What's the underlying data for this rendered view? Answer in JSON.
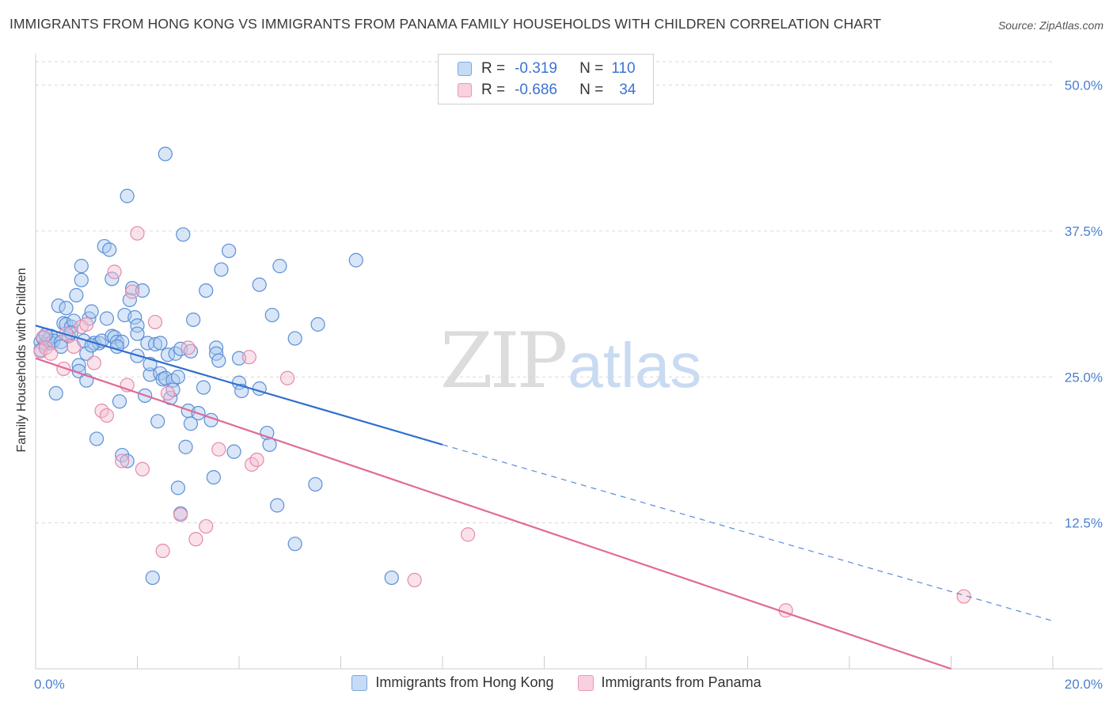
{
  "header": {
    "title": "IMMIGRANTS FROM HONG KONG VS IMMIGRANTS FROM PANAMA FAMILY HOUSEHOLDS WITH CHILDREN CORRELATION CHART",
    "source": "Source: ZipAtlas.com"
  },
  "watermark": {
    "zip": "ZIP",
    "atlas": "atlas"
  },
  "legend": {
    "rows": [
      {
        "r_label": "R =",
        "r_value": "-0.319",
        "n_label": "N =",
        "n_value": "110"
      },
      {
        "r_label": "R =",
        "r_value": "-0.686",
        "n_label": "N =",
        "n_value": "34"
      }
    ]
  },
  "colors": {
    "hong_kong_fill": "#a8c8f0",
    "hong_kong_stroke": "#5b8fd6",
    "hong_kong_line": "#2f6fd0",
    "panama_fill": "#f5bfd2",
    "panama_stroke": "#e48aab",
    "panama_line": "#e06a96",
    "grid": "#d9d9d9",
    "tick_text": "#4a7fd0"
  },
  "chart_data": {
    "type": "scatter",
    "title": "IMMIGRANTS FROM HONG KONG VS IMMIGRANTS FROM PANAMA FAMILY HOUSEHOLDS WITH CHILDREN CORRELATION CHART",
    "xlabel": "",
    "ylabel": "Family Households with Children",
    "xlim": [
      0,
      20
    ],
    "ylim": [
      0,
      52
    ],
    "x_tick_labels": [
      "0.0%",
      "20.0%"
    ],
    "y_ticks": [
      12.5,
      25.0,
      37.5,
      50.0
    ],
    "y_tick_labels": [
      "12.5%",
      "25.0%",
      "37.5%",
      "50.0%"
    ],
    "grid": "horizontal dashed",
    "legend_position": "top-center",
    "series": [
      {
        "name": "Immigrants from Hong Kong",
        "r": -0.319,
        "n": 110,
        "trend": {
          "x0": 0,
          "y0": 29.4,
          "x1": 8.0,
          "y1": 19.2,
          "dashed_to_x": 20.0,
          "dashed_to_y": 4.1
        },
        "points": [
          [
            0.1,
            28.0
          ],
          [
            0.1,
            27.3
          ],
          [
            0.15,
            28.3
          ],
          [
            0.2,
            27.8
          ],
          [
            0.25,
            28.2
          ],
          [
            0.3,
            28.5
          ],
          [
            0.3,
            27.9
          ],
          [
            0.35,
            28.1
          ],
          [
            0.4,
            23.6
          ],
          [
            0.45,
            31.1
          ],
          [
            0.5,
            28.0
          ],
          [
            0.55,
            29.6
          ],
          [
            0.6,
            30.9
          ],
          [
            0.6,
            29.5
          ],
          [
            0.65,
            28.5
          ],
          [
            0.7,
            29.3
          ],
          [
            0.75,
            29.8
          ],
          [
            0.8,
            32.0
          ],
          [
            0.85,
            26.0
          ],
          [
            0.85,
            25.5
          ],
          [
            0.9,
            33.3
          ],
          [
            0.9,
            34.5
          ],
          [
            0.95,
            28.1
          ],
          [
            1.0,
            27.0
          ],
          [
            1.0,
            24.7
          ],
          [
            1.05,
            30.0
          ],
          [
            1.1,
            30.6
          ],
          [
            1.15,
            27.9
          ],
          [
            1.2,
            19.7
          ],
          [
            1.25,
            27.9
          ],
          [
            1.3,
            28.1
          ],
          [
            1.35,
            36.2
          ],
          [
            1.4,
            30.0
          ],
          [
            1.45,
            35.9
          ],
          [
            1.5,
            33.4
          ],
          [
            1.5,
            28.5
          ],
          [
            1.55,
            28.4
          ],
          [
            1.6,
            28.0
          ],
          [
            1.65,
            22.9
          ],
          [
            1.7,
            28.0
          ],
          [
            1.7,
            18.3
          ],
          [
            1.75,
            30.3
          ],
          [
            1.8,
            40.5
          ],
          [
            1.8,
            17.8
          ],
          [
            1.85,
            31.6
          ],
          [
            1.9,
            32.6
          ],
          [
            1.95,
            30.1
          ],
          [
            2.0,
            29.4
          ],
          [
            2.0,
            28.7
          ],
          [
            2.1,
            32.4
          ],
          [
            2.15,
            23.4
          ],
          [
            2.2,
            27.9
          ],
          [
            2.25,
            25.2
          ],
          [
            2.25,
            26.1
          ],
          [
            2.3,
            7.8
          ],
          [
            2.35,
            27.8
          ],
          [
            2.4,
            21.2
          ],
          [
            2.45,
            25.3
          ],
          [
            2.45,
            27.9
          ],
          [
            2.5,
            24.8
          ],
          [
            2.55,
            24.9
          ],
          [
            2.55,
            44.1
          ],
          [
            2.6,
            26.9
          ],
          [
            2.65,
            23.2
          ],
          [
            2.7,
            24.7
          ],
          [
            2.7,
            23.9
          ],
          [
            2.75,
            27.0
          ],
          [
            2.8,
            15.5
          ],
          [
            2.85,
            27.4
          ],
          [
            2.85,
            13.3
          ],
          [
            2.9,
            37.2
          ],
          [
            2.95,
            19.0
          ],
          [
            3.0,
            22.1
          ],
          [
            3.05,
            27.2
          ],
          [
            3.05,
            21.0
          ],
          [
            3.1,
            29.9
          ],
          [
            3.2,
            21.9
          ],
          [
            3.3,
            24.1
          ],
          [
            3.35,
            32.4
          ],
          [
            3.45,
            21.3
          ],
          [
            3.5,
            16.4
          ],
          [
            3.55,
            27.5
          ],
          [
            3.55,
            27.0
          ],
          [
            3.6,
            26.4
          ],
          [
            3.65,
            34.2
          ],
          [
            3.8,
            35.8
          ],
          [
            3.9,
            18.6
          ],
          [
            4.0,
            26.6
          ],
          [
            4.0,
            24.5
          ],
          [
            4.05,
            23.8
          ],
          [
            4.4,
            32.9
          ],
          [
            4.4,
            24.0
          ],
          [
            4.55,
            20.2
          ],
          [
            4.6,
            19.2
          ],
          [
            4.65,
            30.3
          ],
          [
            4.75,
            14.0
          ],
          [
            4.8,
            34.5
          ],
          [
            5.1,
            10.7
          ],
          [
            5.1,
            28.3
          ],
          [
            5.5,
            15.8
          ],
          [
            5.55,
            29.5
          ],
          [
            6.3,
            35.0
          ],
          [
            7.0,
            7.8
          ],
          [
            0.2,
            28.6
          ],
          [
            0.5,
            27.6
          ],
          [
            0.7,
            28.8
          ],
          [
            1.1,
            27.7
          ],
          [
            1.6,
            27.6
          ],
          [
            2.0,
            26.8
          ],
          [
            2.8,
            25.0
          ]
        ]
      },
      {
        "name": "Immigrants from Panama",
        "r": -0.686,
        "n": 34,
        "trend": {
          "x0": 0,
          "y0": 26.6,
          "x1": 18.0,
          "y1": 0.0
        },
        "points": [
          [
            0.1,
            27.2
          ],
          [
            0.15,
            28.4
          ],
          [
            0.2,
            27.5
          ],
          [
            0.3,
            27.0
          ],
          [
            0.55,
            25.7
          ],
          [
            0.6,
            28.7
          ],
          [
            0.75,
            27.6
          ],
          [
            0.9,
            29.3
          ],
          [
            1.0,
            29.5
          ],
          [
            1.15,
            26.2
          ],
          [
            1.3,
            22.1
          ],
          [
            1.4,
            21.7
          ],
          [
            1.55,
            34.0
          ],
          [
            1.7,
            17.8
          ],
          [
            1.8,
            24.3
          ],
          [
            1.9,
            32.3
          ],
          [
            2.0,
            37.3
          ],
          [
            2.1,
            17.1
          ],
          [
            2.35,
            29.7
          ],
          [
            2.5,
            10.1
          ],
          [
            2.6,
            23.6
          ],
          [
            2.85,
            13.2
          ],
          [
            3.0,
            27.5
          ],
          [
            3.15,
            11.1
          ],
          [
            3.35,
            12.2
          ],
          [
            3.6,
            18.8
          ],
          [
            4.2,
            26.7
          ],
          [
            4.25,
            17.5
          ],
          [
            4.35,
            17.9
          ],
          [
            4.95,
            24.9
          ],
          [
            7.45,
            7.6
          ],
          [
            8.5,
            11.5
          ],
          [
            14.75,
            5.0
          ],
          [
            18.25,
            6.2
          ]
        ]
      }
    ]
  },
  "bottom_legend": {
    "items": [
      {
        "label": "Immigrants from Hong Kong"
      },
      {
        "label": "Immigrants from Panama"
      }
    ]
  }
}
